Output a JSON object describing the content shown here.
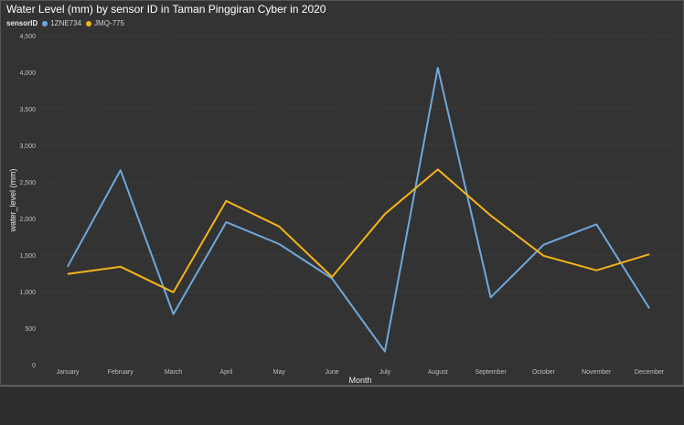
{
  "colors": {
    "series_1": "#6fa8dc",
    "series_2": "#f4b41a",
    "grid": "#4a4a4a",
    "tick_text": "#bfbfbf"
  },
  "chart_data": {
    "type": "line",
    "title": "Water Level (mm) by sensor ID in Taman Pinggiran Cyber in 2020",
    "legend_title": "sensorID",
    "legend_position": "top-left",
    "xlabel": "Month",
    "ylabel": "water_level (mm)",
    "ylim": [
      0,
      4500
    ],
    "yticks": [
      0,
      500,
      1000,
      1500,
      2000,
      2500,
      3000,
      3500,
      4000,
      4500
    ],
    "ytick_labels": [
      "0",
      "500",
      "1,000",
      "1,500",
      "2,000",
      "2,500",
      "3,000",
      "3,500",
      "4,000",
      "4,500"
    ],
    "grid": true,
    "categories": [
      "January",
      "February",
      "March",
      "April",
      "May",
      "June",
      "July",
      "August",
      "September",
      "October",
      "November",
      "December"
    ],
    "series": [
      {
        "name": "1ZNE734",
        "values": [
          1340,
          2660,
          690,
          1950,
          1650,
          1180,
          180,
          4060,
          920,
          1640,
          1920,
          770
        ]
      },
      {
        "name": "JMQ-775",
        "values": [
          1240,
          1340,
          990,
          2240,
          1890,
          1200,
          2060,
          2670,
          2040,
          1490,
          1290,
          1510
        ]
      }
    ]
  }
}
